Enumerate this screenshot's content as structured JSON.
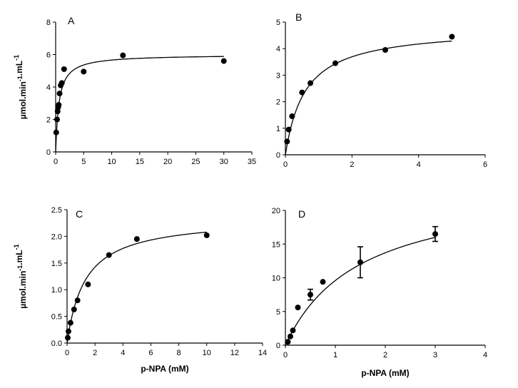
{
  "chart_data": [
    {
      "panel": "A",
      "type": "scatter",
      "ylabel": "µmol.min-1.mL-1",
      "xlabel": "",
      "xlim": [
        0,
        35
      ],
      "xticks": [
        0,
        5,
        10,
        15,
        20,
        25,
        30,
        35
      ],
      "ylim": [
        0,
        8
      ],
      "yticks": [
        0,
        2,
        4,
        6,
        8
      ],
      "points": [
        {
          "x": 0.1,
          "y": 1.2
        },
        {
          "x": 0.25,
          "y": 2.0
        },
        {
          "x": 0.35,
          "y": 2.5
        },
        {
          "x": 0.45,
          "y": 2.75
        },
        {
          "x": 0.55,
          "y": 2.9
        },
        {
          "x": 0.7,
          "y": 3.6
        },
        {
          "x": 0.9,
          "y": 4.1
        },
        {
          "x": 1.1,
          "y": 4.25
        },
        {
          "x": 1.5,
          "y": 5.1
        },
        {
          "x": 5.0,
          "y": 4.95
        },
        {
          "x": 12.0,
          "y": 5.95
        },
        {
          "x": 30.0,
          "y": 5.6
        }
      ],
      "fit": {
        "model": "michaelis-menten",
        "vmax": 6.0,
        "km": 0.6
      }
    },
    {
      "panel": "B",
      "type": "scatter",
      "ylabel": "",
      "xlabel": "",
      "xlim": [
        0,
        6
      ],
      "xticks": [
        0,
        2,
        4,
        6
      ],
      "ylim": [
        0,
        5
      ],
      "yticks": [
        0,
        1,
        2,
        3,
        4,
        5
      ],
      "points": [
        {
          "x": 0.05,
          "y": 0.5
        },
        {
          "x": 0.1,
          "y": 0.95
        },
        {
          "x": 0.2,
          "y": 1.45
        },
        {
          "x": 0.5,
          "y": 2.35
        },
        {
          "x": 0.75,
          "y": 2.7
        },
        {
          "x": 1.5,
          "y": 3.45
        },
        {
          "x": 3.0,
          "y": 3.95
        },
        {
          "x": 5.0,
          "y": 4.45
        }
      ],
      "fit": {
        "model": "michaelis-menten",
        "vmax": 4.8,
        "km": 0.6
      }
    },
    {
      "panel": "C",
      "type": "scatter",
      "ylabel": "µmol.min-1.mL-1",
      "xlabel": "p-NPA (mM)",
      "xlim": [
        0,
        14
      ],
      "xticks": [
        0,
        2,
        4,
        6,
        8,
        10,
        12,
        14
      ],
      "ylim": [
        0,
        2.5
      ],
      "yticks": [
        0.0,
        0.5,
        1.0,
        1.5,
        2.0,
        2.5
      ],
      "points": [
        {
          "x": 0.05,
          "y": 0.1
        },
        {
          "x": 0.1,
          "y": 0.22
        },
        {
          "x": 0.25,
          "y": 0.38
        },
        {
          "x": 0.5,
          "y": 0.63
        },
        {
          "x": 0.75,
          "y": 0.8
        },
        {
          "x": 1.5,
          "y": 1.1
        },
        {
          "x": 3.0,
          "y": 1.65
        },
        {
          "x": 5.0,
          "y": 1.95
        },
        {
          "x": 10.0,
          "y": 2.02
        }
      ],
      "fit": {
        "model": "michaelis-menten",
        "vmax": 2.35,
        "km": 1.3
      }
    },
    {
      "panel": "D",
      "type": "scatter",
      "ylabel": "",
      "xlabel": "p-NPA (mM)",
      "xlim": [
        0,
        4
      ],
      "xticks": [
        0,
        1,
        2,
        3,
        4
      ],
      "ylim": [
        0,
        20
      ],
      "yticks": [
        0,
        5,
        10,
        15,
        20
      ],
      "points": [
        {
          "x": 0.05,
          "y": 0.5
        },
        {
          "x": 0.1,
          "y": 1.3
        },
        {
          "x": 0.15,
          "y": 2.2
        },
        {
          "x": 0.25,
          "y": 5.6
        },
        {
          "x": 0.5,
          "y": 7.5,
          "err": 0.8
        },
        {
          "x": 0.75,
          "y": 9.4
        },
        {
          "x": 1.5,
          "y": 12.3,
          "err": 2.3
        },
        {
          "x": 3.0,
          "y": 16.5,
          "err": 1.1
        }
      ],
      "fit": {
        "model": "michaelis-menten",
        "vmax": 24.0,
        "km": 1.5
      }
    }
  ]
}
